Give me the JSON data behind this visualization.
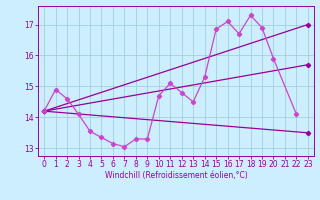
{
  "background_color": "#cceeff",
  "grid_color": "#99cccc",
  "line_color": "#990099",
  "line_color2": "#cc44cc",
  "ylim": [
    12.75,
    17.6
  ],
  "xlim": [
    -0.5,
    23.5
  ],
  "xlabel": "Windchill (Refroidissement éolien,°C)",
  "yticks": [
    13,
    14,
    15,
    16,
    17
  ],
  "xticks": [
    0,
    1,
    2,
    3,
    4,
    5,
    6,
    7,
    8,
    9,
    10,
    11,
    12,
    13,
    14,
    15,
    16,
    17,
    18,
    19,
    20,
    21,
    22,
    23
  ],
  "zigzag_x": [
    0,
    1,
    2,
    3,
    4,
    5,
    6,
    7,
    8,
    9,
    10,
    11,
    12,
    13,
    14,
    15,
    16,
    17,
    18,
    19,
    20,
    22
  ],
  "zigzag_y": [
    14.2,
    14.9,
    14.6,
    14.1,
    13.55,
    13.35,
    13.15,
    13.05,
    13.3,
    13.3,
    14.7,
    15.1,
    14.8,
    14.5,
    15.3,
    16.85,
    17.1,
    16.7,
    17.3,
    16.9,
    15.9,
    14.1
  ],
  "upper_line": [
    [
      0,
      14.2
    ],
    [
      23,
      17.0
    ]
  ],
  "mid_line": [
    [
      0,
      14.2
    ],
    [
      23,
      15.7
    ]
  ],
  "lower_line": [
    [
      0,
      14.2
    ],
    [
      23,
      13.5
    ]
  ],
  "marker": "D",
  "marker_size": 2.2,
  "linewidth": 0.9,
  "tick_fontsize": 5.5,
  "xlabel_fontsize": 5.5
}
